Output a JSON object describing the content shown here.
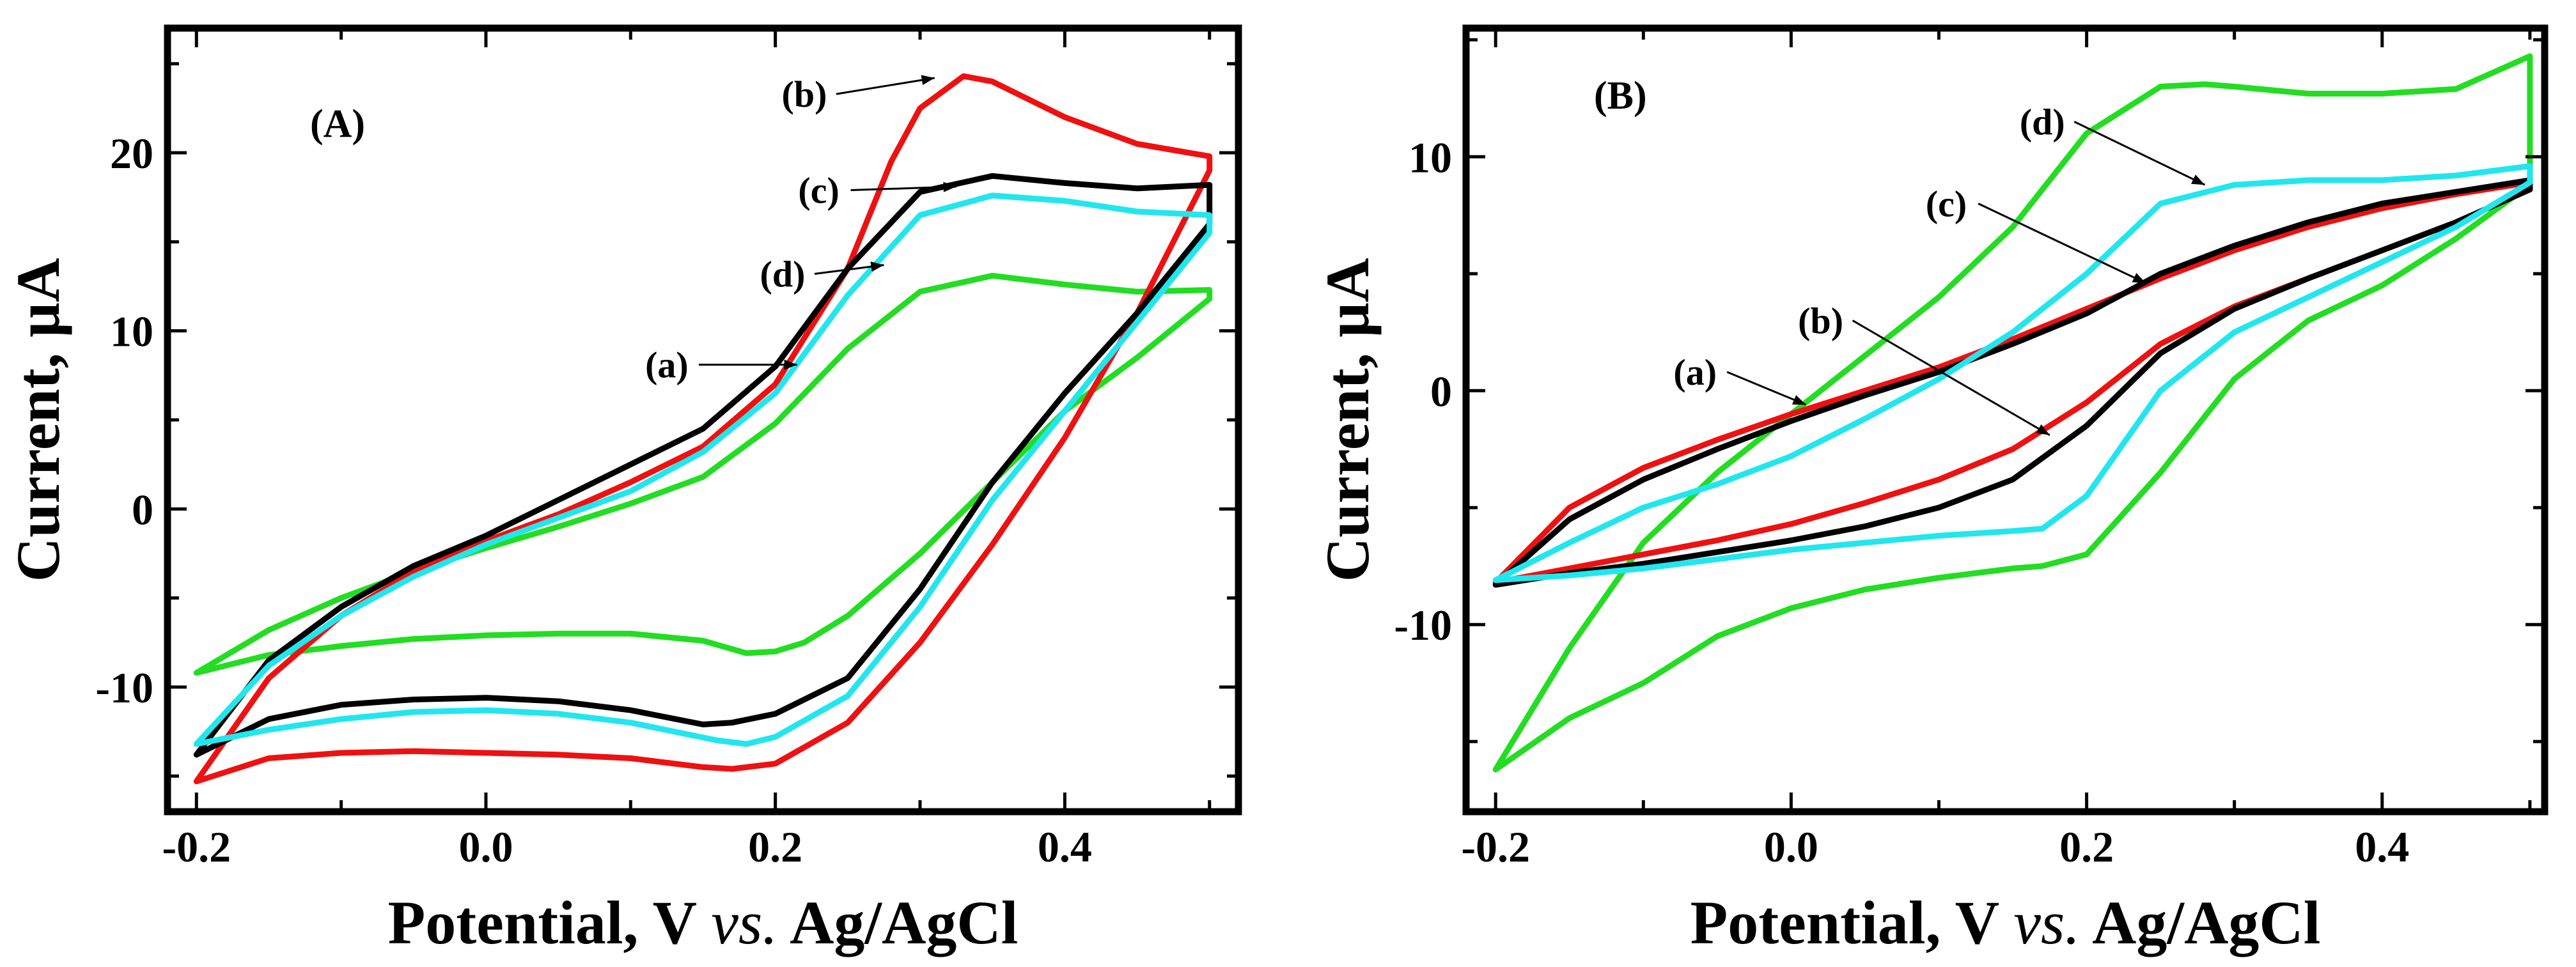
{
  "chart_data": [
    {
      "type": "line",
      "panel": "(A)",
      "xlabel_main": "Potential, V ",
      "xlabel_italic": "vs.",
      "xlabel_tail": " Ag/AgCl",
      "ylabel": "Current, µA",
      "xlim": [
        -0.22,
        0.52
      ],
      "ylim": [
        -17,
        27
      ],
      "xticks": [
        -0.2,
        0.0,
        0.2,
        0.4
      ],
      "xtick_labels": [
        "-0.2",
        "0.0",
        "0.2",
        "0.4"
      ],
      "yticks": [
        -10,
        0,
        10,
        20
      ],
      "ytick_labels": [
        "-10",
        "0",
        "10",
        "20"
      ],
      "series": [
        {
          "name": "(a)",
          "color": "#22dd22",
          "x": [
            -0.2,
            -0.15,
            -0.1,
            -0.05,
            0.0,
            0.05,
            0.1,
            0.15,
            0.2,
            0.25,
            0.3,
            0.35,
            0.4,
            0.45,
            0.5,
            0.5,
            0.45,
            0.4,
            0.35,
            0.3,
            0.25,
            0.22,
            0.2,
            0.18,
            0.15,
            0.1,
            0.05,
            0.0,
            -0.05,
            -0.1,
            -0.15,
            -0.2
          ],
          "y": [
            -9.2,
            -6.8,
            -5.0,
            -3.5,
            -2.2,
            -1.0,
            0.3,
            1.8,
            4.8,
            9.0,
            12.2,
            13.1,
            12.6,
            12.2,
            12.3,
            11.8,
            8.5,
            5.5,
            1.5,
            -2.5,
            -6.0,
            -7.5,
            -8.0,
            -8.1,
            -7.4,
            -7.0,
            -7.0,
            -7.1,
            -7.3,
            -7.7,
            -8.2,
            -9.2
          ]
        },
        {
          "name": "(b)",
          "color": "#ee1111",
          "x": [
            -0.2,
            -0.15,
            -0.1,
            -0.05,
            0.0,
            0.05,
            0.1,
            0.15,
            0.2,
            0.25,
            0.28,
            0.3,
            0.33,
            0.35,
            0.4,
            0.45,
            0.5,
            0.5,
            0.45,
            0.4,
            0.35,
            0.3,
            0.25,
            0.2,
            0.17,
            0.15,
            0.1,
            0.05,
            0.0,
            -0.05,
            -0.1,
            -0.15,
            -0.2
          ],
          "y": [
            -15.3,
            -9.5,
            -6.0,
            -3.5,
            -1.8,
            -0.3,
            1.5,
            3.5,
            7.0,
            13.5,
            19.5,
            22.5,
            24.3,
            24.0,
            22.0,
            20.5,
            19.8,
            19.0,
            11.0,
            4.0,
            -2.0,
            -7.5,
            -12.0,
            -14.3,
            -14.6,
            -14.5,
            -14.0,
            -13.8,
            -13.7,
            -13.6,
            -13.7,
            -14.0,
            -15.3
          ]
        },
        {
          "name": "(c)",
          "color": "#000000",
          "x": [
            -0.2,
            -0.15,
            -0.1,
            -0.05,
            0.0,
            0.05,
            0.1,
            0.15,
            0.2,
            0.25,
            0.3,
            0.35,
            0.4,
            0.45,
            0.5,
            0.5,
            0.45,
            0.4,
            0.35,
            0.3,
            0.25,
            0.2,
            0.17,
            0.15,
            0.1,
            0.05,
            0.0,
            -0.05,
            -0.1,
            -0.15,
            -0.2
          ],
          "y": [
            -13.8,
            -8.5,
            -5.5,
            -3.2,
            -1.5,
            0.5,
            2.5,
            4.5,
            8.0,
            13.5,
            17.8,
            18.7,
            18.3,
            18.0,
            18.2,
            16.0,
            11.0,
            6.5,
            1.5,
            -4.5,
            -9.5,
            -11.5,
            -12.0,
            -12.1,
            -11.3,
            -10.8,
            -10.6,
            -10.7,
            -11.0,
            -11.8,
            -13.8
          ]
        },
        {
          "name": "(d)",
          "color": "#22e6ee",
          "x": [
            -0.2,
            -0.15,
            -0.1,
            -0.05,
            0.0,
            0.05,
            0.1,
            0.15,
            0.2,
            0.25,
            0.3,
            0.35,
            0.4,
            0.45,
            0.5,
            0.5,
            0.45,
            0.4,
            0.35,
            0.3,
            0.25,
            0.2,
            0.18,
            0.16,
            0.1,
            0.05,
            0.0,
            -0.05,
            -0.1,
            -0.15,
            -0.2
          ],
          "y": [
            -13.2,
            -8.8,
            -6.0,
            -3.8,
            -2.0,
            -0.5,
            1.0,
            3.2,
            6.5,
            12.0,
            16.5,
            17.6,
            17.3,
            16.7,
            16.5,
            15.5,
            10.5,
            5.5,
            0.5,
            -5.5,
            -10.5,
            -12.8,
            -13.2,
            -13.0,
            -12.0,
            -11.5,
            -11.3,
            -11.4,
            -11.8,
            -12.4,
            -13.2
          ]
        }
      ],
      "annotations": [
        {
          "text": "(a)",
          "x": 0.125,
          "y": 8.1,
          "tx": 0.215,
          "ty": 8.1
        },
        {
          "text": "(b)",
          "x": 0.22,
          "y": 23.3,
          "tx": 0.31,
          "ty": 24.2
        },
        {
          "text": "(c)",
          "x": 0.23,
          "y": 17.9,
          "tx": 0.325,
          "ty": 18.1
        },
        {
          "text": "(d)",
          "x": 0.205,
          "y": 13.2,
          "tx": 0.275,
          "ty": 13.7
        }
      ]
    },
    {
      "type": "line",
      "panel": "(B)",
      "xlabel_main": "Potential, V ",
      "xlabel_italic": "vs.",
      "xlabel_tail": " Ag/AgCl",
      "ylabel": "Current, µA",
      "xlim": [
        -0.22,
        0.51
      ],
      "ylim": [
        -18,
        15.5
      ],
      "xticks": [
        -0.2,
        0.0,
        0.2,
        0.4
      ],
      "xtick_labels": [
        "-0.2",
        "0.0",
        "0.2",
        "0.4"
      ],
      "yticks": [
        -10,
        0,
        10
      ],
      "ytick_labels": [
        "-10",
        "0",
        "10"
      ],
      "series": [
        {
          "name": "(a)",
          "color": "#22dd22",
          "x": [
            -0.2,
            -0.15,
            -0.1,
            -0.05,
            0.0,
            0.05,
            0.1,
            0.15,
            0.2,
            0.25,
            0.28,
            0.3,
            0.35,
            0.4,
            0.45,
            0.5,
            0.5,
            0.45,
            0.4,
            0.35,
            0.3,
            0.25,
            0.2,
            0.17,
            0.15,
            0.1,
            0.05,
            0.0,
            -0.05,
            -0.1,
            -0.15,
            -0.2
          ],
          "y": [
            -16.2,
            -11.0,
            -6.5,
            -3.5,
            -1.0,
            1.5,
            4.0,
            7.0,
            11.0,
            13.0,
            13.1,
            13.0,
            12.7,
            12.7,
            12.9,
            14.3,
            8.8,
            6.5,
            4.5,
            3.0,
            0.5,
            -3.5,
            -7.0,
            -7.5,
            -7.6,
            -8.0,
            -8.5,
            -9.3,
            -10.5,
            -12.5,
            -14.0,
            -16.2
          ]
        },
        {
          "name": "(b)",
          "color": "#ee1111",
          "x": [
            -0.2,
            -0.15,
            -0.1,
            -0.05,
            0.0,
            0.05,
            0.1,
            0.15,
            0.2,
            0.25,
            0.3,
            0.35,
            0.4,
            0.45,
            0.5,
            0.5,
            0.45,
            0.4,
            0.35,
            0.3,
            0.25,
            0.2,
            0.15,
            0.1,
            0.05,
            0.0,
            -0.05,
            -0.1,
            -0.15,
            -0.2
          ],
          "y": [
            -8.2,
            -5.0,
            -3.3,
            -2.1,
            -1.0,
            0.0,
            1.0,
            2.2,
            3.5,
            4.8,
            6.0,
            7.0,
            7.8,
            8.4,
            8.9,
            8.6,
            7.2,
            6.0,
            4.8,
            3.6,
            2.0,
            -0.5,
            -2.5,
            -3.8,
            -4.8,
            -5.7,
            -6.4,
            -7.0,
            -7.6,
            -8.2
          ]
        },
        {
          "name": "(c)",
          "color": "#000000",
          "x": [
            -0.2,
            -0.15,
            -0.1,
            -0.05,
            0.0,
            0.05,
            0.1,
            0.15,
            0.2,
            0.25,
            0.3,
            0.35,
            0.4,
            0.45,
            0.5,
            0.5,
            0.45,
            0.4,
            0.35,
            0.3,
            0.25,
            0.2,
            0.15,
            0.1,
            0.05,
            0.0,
            -0.05,
            -0.1,
            -0.15,
            -0.2
          ],
          "y": [
            -8.3,
            -5.5,
            -3.8,
            -2.5,
            -1.3,
            -0.2,
            0.8,
            2.0,
            3.3,
            5.0,
            6.2,
            7.2,
            8.0,
            8.5,
            9.0,
            8.6,
            7.2,
            6.0,
            4.8,
            3.5,
            1.6,
            -1.5,
            -3.8,
            -5.0,
            -5.8,
            -6.4,
            -6.9,
            -7.4,
            -7.8,
            -8.3
          ]
        },
        {
          "name": "(d)",
          "color": "#22e6ee",
          "x": [
            -0.2,
            -0.15,
            -0.1,
            -0.05,
            0.0,
            0.05,
            0.1,
            0.15,
            0.2,
            0.25,
            0.3,
            0.35,
            0.4,
            0.45,
            0.5,
            0.5,
            0.45,
            0.4,
            0.35,
            0.3,
            0.25,
            0.2,
            0.17,
            0.15,
            0.1,
            0.05,
            0.0,
            -0.05,
            -0.1,
            -0.15,
            -0.2
          ],
          "y": [
            -8.1,
            -6.5,
            -5.0,
            -4.0,
            -2.8,
            -1.2,
            0.5,
            2.5,
            5.0,
            8.0,
            8.8,
            9.0,
            9.0,
            9.2,
            9.6,
            8.9,
            7.0,
            5.5,
            4.0,
            2.5,
            0.0,
            -4.5,
            -5.9,
            -6.0,
            -6.2,
            -6.5,
            -6.8,
            -7.2,
            -7.6,
            -7.9,
            -8.1
          ]
        }
      ],
      "annotations": [
        {
          "text": "(a)",
          "x": -0.065,
          "y": 0.8,
          "tx": 0.01,
          "ty": -0.6
        },
        {
          "text": "(b)",
          "x": 0.02,
          "y": 3.0,
          "tx": 0.175,
          "ty": -1.9
        },
        {
          "text": "(c)",
          "x": 0.105,
          "y": 8.0,
          "tx": 0.24,
          "ty": 4.6
        },
        {
          "text": "(d)",
          "x": 0.17,
          "y": 11.5,
          "tx": 0.28,
          "ty": 8.8
        }
      ]
    }
  ]
}
